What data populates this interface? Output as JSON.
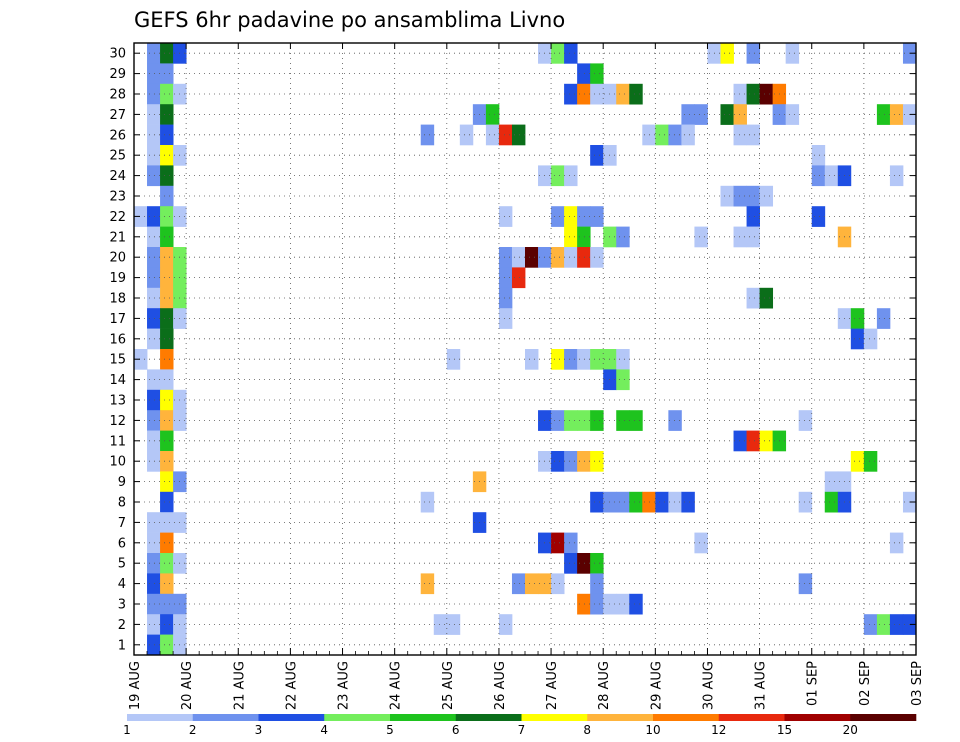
{
  "chart_data": {
    "type": "heatmap",
    "title": "GEFS 6hr padavine po ansamblima Livno",
    "y_categories": [
      "1",
      "2",
      "3",
      "4",
      "5",
      "6",
      "7",
      "8",
      "9",
      "10",
      "11",
      "12",
      "13",
      "14",
      "15",
      "16",
      "17",
      "18",
      "19",
      "20",
      "21",
      "22",
      "23",
      "24",
      "25",
      "26",
      "27",
      "28",
      "29",
      "30"
    ],
    "x_tick_labels": [
      "19 AUG",
      "20 AUG",
      "21 AUG",
      "22 AUG",
      "23 AUG",
      "24 AUG",
      "25 AUG",
      "26 AUG",
      "27 AUG",
      "28 AUG",
      "29 AUG",
      "30 AUG",
      "31 AUG",
      "01 SEP",
      "02 SEP",
      "03 SEP"
    ],
    "x_range_days": [
      0,
      15
    ],
    "time_step_hours": 6,
    "grid": "dotted",
    "colorbar": {
      "levels": [
        "1",
        "2",
        "3",
        "4",
        "5",
        "6",
        "7",
        "8",
        "10",
        "12",
        "15",
        "20"
      ],
      "colors": [
        "#b4c7f7",
        "#6f92ee",
        "#1f4fe3",
        "#74ee5d",
        "#1ec31e",
        "#0b6e1a",
        "#ffff00",
        "#ffb43c",
        "#ff7b00",
        "#e8290e",
        "#a00000",
        "#5a0000"
      ]
    },
    "cells": [
      {
        "m": 30,
        "t": 1,
        "c": 2
      },
      {
        "m": 30,
        "t": 2,
        "c": 6
      },
      {
        "m": 30,
        "t": 3,
        "c": 3
      },
      {
        "m": 30,
        "t": 31,
        "c": 1
      },
      {
        "m": 30,
        "t": 32,
        "c": 4
      },
      {
        "m": 30,
        "t": 33,
        "c": 3
      },
      {
        "m": 30,
        "t": 44,
        "c": 1
      },
      {
        "m": 30,
        "t": 45,
        "c": 7
      },
      {
        "m": 30,
        "t": 47,
        "c": 2
      },
      {
        "m": 30,
        "t": 50,
        "c": 1
      },
      {
        "m": 30,
        "t": 59,
        "c": 2
      },
      {
        "m": 29,
        "t": 1,
        "c": 2
      },
      {
        "m": 29,
        "t": 2,
        "c": 2
      },
      {
        "m": 29,
        "t": 34,
        "c": 3
      },
      {
        "m": 29,
        "t": 35,
        "c": 5
      },
      {
        "m": 28,
        "t": 1,
        "c": 2
      },
      {
        "m": 28,
        "t": 2,
        "c": 4
      },
      {
        "m": 28,
        "t": 3,
        "c": 1
      },
      {
        "m": 28,
        "t": 33,
        "c": 3
      },
      {
        "m": 28,
        "t": 34,
        "c": 9
      },
      {
        "m": 28,
        "t": 35,
        "c": 1
      },
      {
        "m": 28,
        "t": 36,
        "c": 1
      },
      {
        "m": 28,
        "t": 37,
        "c": 8
      },
      {
        "m": 28,
        "t": 38,
        "c": 6
      },
      {
        "m": 28,
        "t": 46,
        "c": 1
      },
      {
        "m": 28,
        "t": 47,
        "c": 6
      },
      {
        "m": 28,
        "t": 48,
        "c": 12
      },
      {
        "m": 28,
        "t": 49,
        "c": 9
      },
      {
        "m": 27,
        "t": 1,
        "c": 1
      },
      {
        "m": 27,
        "t": 2,
        "c": 6
      },
      {
        "m": 27,
        "t": 26,
        "c": 2
      },
      {
        "m": 27,
        "t": 27,
        "c": 5
      },
      {
        "m": 27,
        "t": 42,
        "c": 2
      },
      {
        "m": 27,
        "t": 43,
        "c": 2
      },
      {
        "m": 27,
        "t": 45,
        "c": 6
      },
      {
        "m": 27,
        "t": 46,
        "c": 8
      },
      {
        "m": 27,
        "t": 49,
        "c": 2
      },
      {
        "m": 27,
        "t": 50,
        "c": 1
      },
      {
        "m": 27,
        "t": 57,
        "c": 5
      },
      {
        "m": 27,
        "t": 58,
        "c": 8
      },
      {
        "m": 27,
        "t": 59,
        "c": 1
      },
      {
        "m": 26,
        "t": 1,
        "c": 1
      },
      {
        "m": 26,
        "t": 2,
        "c": 3
      },
      {
        "m": 26,
        "t": 22,
        "c": 2
      },
      {
        "m": 26,
        "t": 25,
        "c": 1
      },
      {
        "m": 26,
        "t": 27,
        "c": 1
      },
      {
        "m": 26,
        "t": 28,
        "c": 10
      },
      {
        "m": 26,
        "t": 29,
        "c": 6
      },
      {
        "m": 26,
        "t": 39,
        "c": 1
      },
      {
        "m": 26,
        "t": 40,
        "c": 4
      },
      {
        "m": 26,
        "t": 41,
        "c": 2
      },
      {
        "m": 26,
        "t": 42,
        "c": 1
      },
      {
        "m": 26,
        "t": 46,
        "c": 1
      },
      {
        "m": 26,
        "t": 47,
        "c": 1
      },
      {
        "m": 25,
        "t": 1,
        "c": 1
      },
      {
        "m": 25,
        "t": 2,
        "c": 7
      },
      {
        "m": 25,
        "t": 3,
        "c": 1
      },
      {
        "m": 25,
        "t": 35,
        "c": 3
      },
      {
        "m": 25,
        "t": 36,
        "c": 1
      },
      {
        "m": 25,
        "t": 52,
        "c": 1
      },
      {
        "m": 24,
        "t": 1,
        "c": 2
      },
      {
        "m": 24,
        "t": 2,
        "c": 6
      },
      {
        "m": 24,
        "t": 31,
        "c": 1
      },
      {
        "m": 24,
        "t": 32,
        "c": 4
      },
      {
        "m": 24,
        "t": 33,
        "c": 1
      },
      {
        "m": 24,
        "t": 52,
        "c": 2
      },
      {
        "m": 24,
        "t": 53,
        "c": 1
      },
      {
        "m": 24,
        "t": 54,
        "c": 3
      },
      {
        "m": 24,
        "t": 58,
        "c": 1
      },
      {
        "m": 23,
        "t": 2,
        "c": 2
      },
      {
        "m": 23,
        "t": 45,
        "c": 1
      },
      {
        "m": 23,
        "t": 46,
        "c": 2
      },
      {
        "m": 23,
        "t": 47,
        "c": 2
      },
      {
        "m": 23,
        "t": 48,
        "c": 1
      },
      {
        "m": 22,
        "t": 0,
        "c": 1
      },
      {
        "m": 22,
        "t": 1,
        "c": 3
      },
      {
        "m": 22,
        "t": 2,
        "c": 4
      },
      {
        "m": 22,
        "t": 3,
        "c": 1
      },
      {
        "m": 22,
        "t": 28,
        "c": 1
      },
      {
        "m": 22,
        "t": 32,
        "c": 2
      },
      {
        "m": 22,
        "t": 33,
        "c": 7
      },
      {
        "m": 22,
        "t": 34,
        "c": 2
      },
      {
        "m": 22,
        "t": 35,
        "c": 2
      },
      {
        "m": 22,
        "t": 47,
        "c": 3
      },
      {
        "m": 22,
        "t": 52,
        "c": 3
      },
      {
        "m": 21,
        "t": 1,
        "c": 1
      },
      {
        "m": 21,
        "t": 2,
        "c": 5
      },
      {
        "m": 21,
        "t": 33,
        "c": 7
      },
      {
        "m": 21,
        "t": 34,
        "c": 5
      },
      {
        "m": 21,
        "t": 36,
        "c": 4
      },
      {
        "m": 21,
        "t": 37,
        "c": 2
      },
      {
        "m": 21,
        "t": 43,
        "c": 1
      },
      {
        "m": 21,
        "t": 46,
        "c": 1
      },
      {
        "m": 21,
        "t": 47,
        "c": 1
      },
      {
        "m": 21,
        "t": 54,
        "c": 8
      },
      {
        "m": 20,
        "t": 1,
        "c": 2
      },
      {
        "m": 20,
        "t": 2,
        "c": 8
      },
      {
        "m": 20,
        "t": 3,
        "c": 4
      },
      {
        "m": 20,
        "t": 28,
        "c": 2
      },
      {
        "m": 20,
        "t": 29,
        "c": 1
      },
      {
        "m": 20,
        "t": 30,
        "c": 12
      },
      {
        "m": 20,
        "t": 31,
        "c": 2
      },
      {
        "m": 20,
        "t": 32,
        "c": 8
      },
      {
        "m": 20,
        "t": 33,
        "c": 1
      },
      {
        "m": 20,
        "t": 34,
        "c": 10
      },
      {
        "m": 20,
        "t": 35,
        "c": 1
      },
      {
        "m": 19,
        "t": 1,
        "c": 2
      },
      {
        "m": 19,
        "t": 2,
        "c": 8
      },
      {
        "m": 19,
        "t": 3,
        "c": 4
      },
      {
        "m": 19,
        "t": 28,
        "c": 2
      },
      {
        "m": 19,
        "t": 29,
        "c": 10
      },
      {
        "m": 18,
        "t": 1,
        "c": 1
      },
      {
        "m": 18,
        "t": 2,
        "c": 8
      },
      {
        "m": 18,
        "t": 3,
        "c": 4
      },
      {
        "m": 18,
        "t": 28,
        "c": 2
      },
      {
        "m": 18,
        "t": 47,
        "c": 1
      },
      {
        "m": 18,
        "t": 48,
        "c": 6
      },
      {
        "m": 17,
        "t": 1,
        "c": 3
      },
      {
        "m": 17,
        "t": 2,
        "c": 6
      },
      {
        "m": 17,
        "t": 3,
        "c": 1
      },
      {
        "m": 17,
        "t": 28,
        "c": 1
      },
      {
        "m": 17,
        "t": 54,
        "c": 1
      },
      {
        "m": 17,
        "t": 55,
        "c": 5
      },
      {
        "m": 17,
        "t": 57,
        "c": 2
      },
      {
        "m": 16,
        "t": 1,
        "c": 1
      },
      {
        "m": 16,
        "t": 2,
        "c": 6
      },
      {
        "m": 16,
        "t": 55,
        "c": 3
      },
      {
        "m": 16,
        "t": 56,
        "c": 1
      },
      {
        "m": 15,
        "t": 0,
        "c": 1
      },
      {
        "m": 15,
        "t": 2,
        "c": 9
      },
      {
        "m": 15,
        "t": 24,
        "c": 1
      },
      {
        "m": 15,
        "t": 30,
        "c": 1
      },
      {
        "m": 15,
        "t": 32,
        "c": 7
      },
      {
        "m": 15,
        "t": 33,
        "c": 2
      },
      {
        "m": 15,
        "t": 34,
        "c": 1
      },
      {
        "m": 15,
        "t": 35,
        "c": 4
      },
      {
        "m": 15,
        "t": 36,
        "c": 4
      },
      {
        "m": 15,
        "t": 37,
        "c": 1
      },
      {
        "m": 14,
        "t": 1,
        "c": 1
      },
      {
        "m": 14,
        "t": 2,
        "c": 1
      },
      {
        "m": 14,
        "t": 36,
        "c": 3
      },
      {
        "m": 14,
        "t": 37,
        "c": 4
      },
      {
        "m": 13,
        "t": 1,
        "c": 3
      },
      {
        "m": 13,
        "t": 2,
        "c": 7
      },
      {
        "m": 13,
        "t": 3,
        "c": 1
      },
      {
        "m": 12,
        "t": 1,
        "c": 2
      },
      {
        "m": 12,
        "t": 2,
        "c": 8
      },
      {
        "m": 12,
        "t": 3,
        "c": 1
      },
      {
        "m": 12,
        "t": 31,
        "c": 3
      },
      {
        "m": 12,
        "t": 32,
        "c": 2
      },
      {
        "m": 12,
        "t": 33,
        "c": 4
      },
      {
        "m": 12,
        "t": 34,
        "c": 4
      },
      {
        "m": 12,
        "t": 35,
        "c": 5
      },
      {
        "m": 12,
        "t": 37,
        "c": 5
      },
      {
        "m": 12,
        "t": 38,
        "c": 5
      },
      {
        "m": 12,
        "t": 41,
        "c": 2
      },
      {
        "m": 12,
        "t": 51,
        "c": 1
      },
      {
        "m": 11,
        "t": 1,
        "c": 1
      },
      {
        "m": 11,
        "t": 2,
        "c": 5
      },
      {
        "m": 11,
        "t": 46,
        "c": 3
      },
      {
        "m": 11,
        "t": 47,
        "c": 10
      },
      {
        "m": 11,
        "t": 48,
        "c": 7
      },
      {
        "m": 11,
        "t": 49,
        "c": 5
      },
      {
        "m": 10,
        "t": 1,
        "c": 1
      },
      {
        "m": 10,
        "t": 2,
        "c": 8
      },
      {
        "m": 10,
        "t": 31,
        "c": 1
      },
      {
        "m": 10,
        "t": 32,
        "c": 3
      },
      {
        "m": 10,
        "t": 33,
        "c": 2
      },
      {
        "m": 10,
        "t": 34,
        "c": 8
      },
      {
        "m": 10,
        "t": 35,
        "c": 7
      },
      {
        "m": 10,
        "t": 55,
        "c": 7
      },
      {
        "m": 10,
        "t": 56,
        "c": 5
      },
      {
        "m": 9,
        "t": 2,
        "c": 7
      },
      {
        "m": 9,
        "t": 3,
        "c": 2
      },
      {
        "m": 9,
        "t": 26,
        "c": 8
      },
      {
        "m": 9,
        "t": 53,
        "c": 1
      },
      {
        "m": 9,
        "t": 54,
        "c": 1
      },
      {
        "m": 8,
        "t": 2,
        "c": 3
      },
      {
        "m": 8,
        "t": 22,
        "c": 1
      },
      {
        "m": 8,
        "t": 35,
        "c": 3
      },
      {
        "m": 8,
        "t": 36,
        "c": 2
      },
      {
        "m": 8,
        "t": 37,
        "c": 2
      },
      {
        "m": 8,
        "t": 38,
        "c": 5
      },
      {
        "m": 8,
        "t": 39,
        "c": 9
      },
      {
        "m": 8,
        "t": 40,
        "c": 3
      },
      {
        "m": 8,
        "t": 41,
        "c": 1
      },
      {
        "m": 8,
        "t": 42,
        "c": 3
      },
      {
        "m": 8,
        "t": 51,
        "c": 1
      },
      {
        "m": 8,
        "t": 53,
        "c": 5
      },
      {
        "m": 8,
        "t": 54,
        "c": 3
      },
      {
        "m": 8,
        "t": 59,
        "c": 1
      },
      {
        "m": 7,
        "t": 1,
        "c": 1
      },
      {
        "m": 7,
        "t": 2,
        "c": 1
      },
      {
        "m": 7,
        "t": 3,
        "c": 1
      },
      {
        "m": 7,
        "t": 26,
        "c": 3
      },
      {
        "m": 6,
        "t": 1,
        "c": 1
      },
      {
        "m": 6,
        "t": 2,
        "c": 9
      },
      {
        "m": 6,
        "t": 31,
        "c": 3
      },
      {
        "m": 6,
        "t": 32,
        "c": 11
      },
      {
        "m": 6,
        "t": 33,
        "c": 2
      },
      {
        "m": 6,
        "t": 43,
        "c": 1
      },
      {
        "m": 6,
        "t": 58,
        "c": 1
      },
      {
        "m": 5,
        "t": 1,
        "c": 2
      },
      {
        "m": 5,
        "t": 2,
        "c": 4
      },
      {
        "m": 5,
        "t": 3,
        "c": 1
      },
      {
        "m": 5,
        "t": 33,
        "c": 3
      },
      {
        "m": 5,
        "t": 34,
        "c": 12
      },
      {
        "m": 5,
        "t": 35,
        "c": 5
      },
      {
        "m": 4,
        "t": 1,
        "c": 3
      },
      {
        "m": 4,
        "t": 2,
        "c": 8
      },
      {
        "m": 4,
        "t": 22,
        "c": 8
      },
      {
        "m": 4,
        "t": 29,
        "c": 2
      },
      {
        "m": 4,
        "t": 30,
        "c": 8
      },
      {
        "m": 4,
        "t": 31,
        "c": 8
      },
      {
        "m": 4,
        "t": 32,
        "c": 1
      },
      {
        "m": 4,
        "t": 35,
        "c": 2
      },
      {
        "m": 4,
        "t": 51,
        "c": 2
      },
      {
        "m": 3,
        "t": 1,
        "c": 2
      },
      {
        "m": 3,
        "t": 2,
        "c": 2
      },
      {
        "m": 3,
        "t": 3,
        "c": 2
      },
      {
        "m": 3,
        "t": 34,
        "c": 9
      },
      {
        "m": 3,
        "t": 35,
        "c": 2
      },
      {
        "m": 3,
        "t": 36,
        "c": 1
      },
      {
        "m": 3,
        "t": 37,
        "c": 1
      },
      {
        "m": 3,
        "t": 38,
        "c": 3
      },
      {
        "m": 2,
        "t": 1,
        "c": 1
      },
      {
        "m": 2,
        "t": 2,
        "c": 3
      },
      {
        "m": 2,
        "t": 3,
        "c": 1
      },
      {
        "m": 2,
        "t": 23,
        "c": 1
      },
      {
        "m": 2,
        "t": 24,
        "c": 1
      },
      {
        "m": 2,
        "t": 28,
        "c": 1
      },
      {
        "m": 2,
        "t": 56,
        "c": 2
      },
      {
        "m": 2,
        "t": 57,
        "c": 4
      },
      {
        "m": 2,
        "t": 58,
        "c": 3
      },
      {
        "m": 2,
        "t": 59,
        "c": 3
      },
      {
        "m": 1,
        "t": 1,
        "c": 3
      },
      {
        "m": 1,
        "t": 2,
        "c": 4
      },
      {
        "m": 1,
        "t": 3,
        "c": 1
      }
    ],
    "bottom_row_cells": [
      {
        "t": 26,
        "c": 5
      },
      {
        "t": 27,
        "c": 3
      },
      {
        "t": 35,
        "c": 2
      },
      {
        "t": 37,
        "c": 2
      },
      {
        "t": 38,
        "c": 4
      },
      {
        "t": 47,
        "c": 1
      },
      {
        "t": 50,
        "c": 3
      }
    ]
  }
}
